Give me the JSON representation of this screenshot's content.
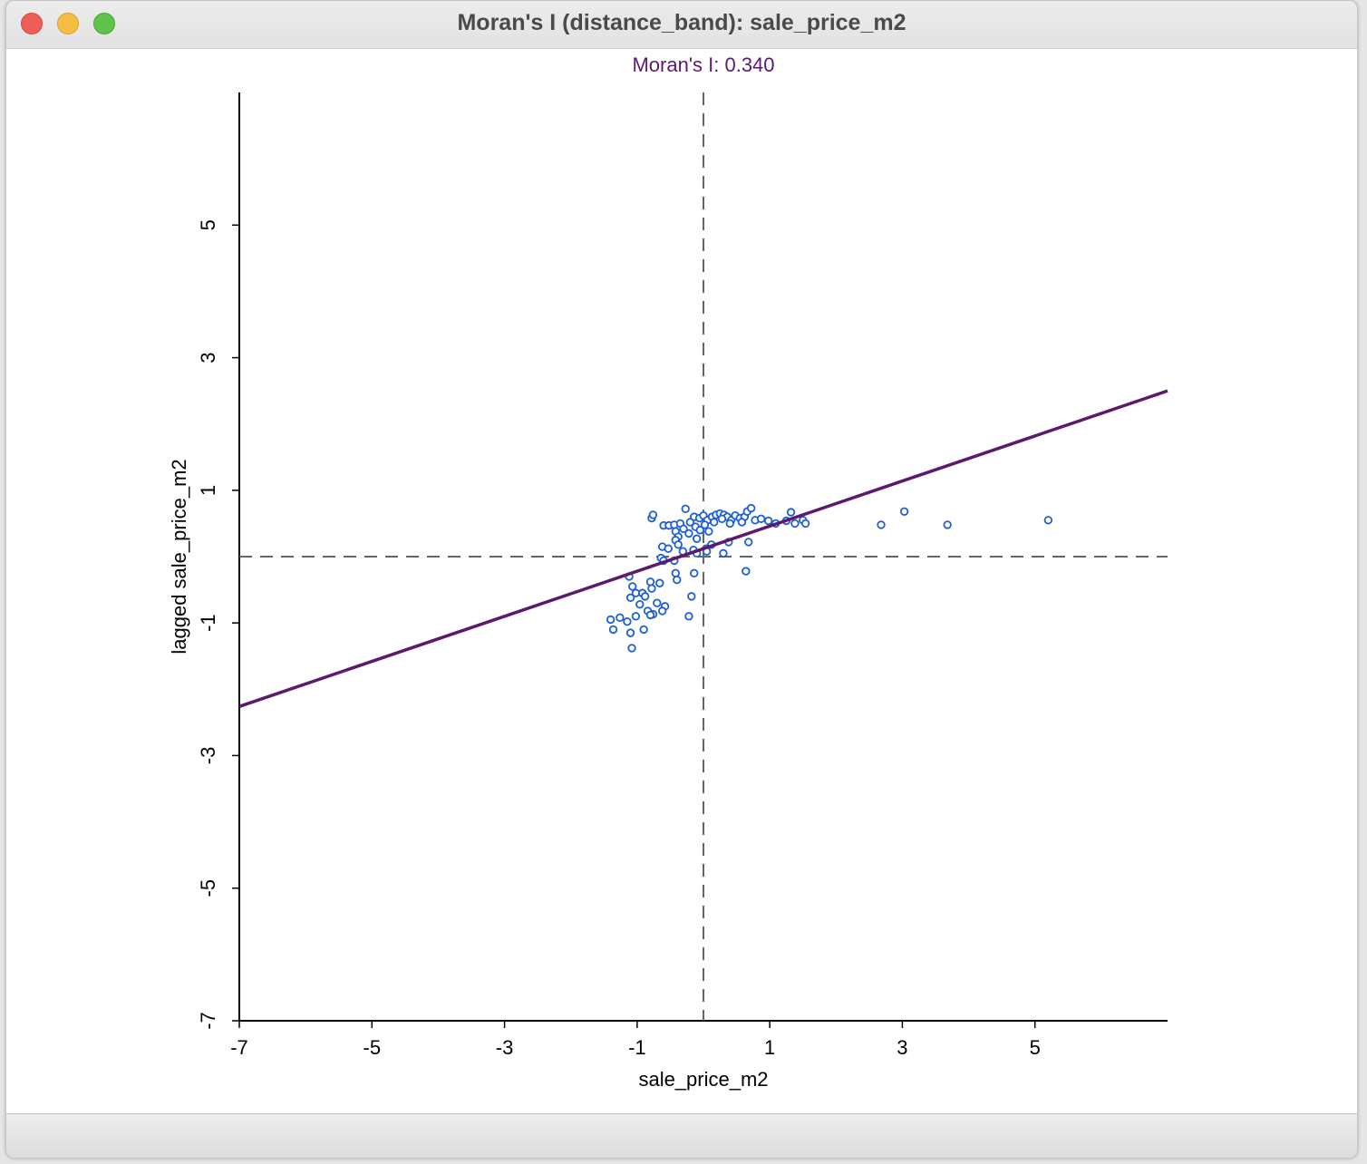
{
  "window": {
    "title": "Moran's I (distance_band): sale_price_m2"
  },
  "chart_data": {
    "type": "scatter",
    "title": "Moran's I: 0.340",
    "xlabel": "sale_price_m2",
    "ylabel": "lagged sale_price_m2",
    "xlim": [
      -7,
      7
    ],
    "ylim": [
      -7,
      7
    ],
    "xticks": [
      "-7",
      "-5",
      "-3",
      "-1",
      "1",
      "3",
      "5"
    ],
    "yticks": [
      "-7",
      "-5",
      "-3",
      "-1",
      "1",
      "3",
      "5"
    ],
    "grid": false,
    "reference_lines": {
      "x": 0,
      "y": 0,
      "style": "dashed"
    },
    "regression_line": {
      "slope": 0.34,
      "intercept": 0.12
    },
    "colors": {
      "points": "#1f5fd6",
      "regression": "#5b1a6e",
      "title": "#5b1a6e",
      "reference": "#666666"
    },
    "points": [
      [
        -0.78,
        0.58
      ],
      [
        -0.76,
        0.63
      ],
      [
        -0.6,
        0.47
      ],
      [
        -0.52,
        0.47
      ],
      [
        -0.44,
        0.48
      ],
      [
        -0.35,
        0.5
      ],
      [
        -0.27,
        0.72
      ],
      [
        -0.2,
        0.52
      ],
      [
        -0.14,
        0.6
      ],
      [
        -0.06,
        0.58
      ],
      [
        0.0,
        0.62
      ],
      [
        0.06,
        0.55
      ],
      [
        0.13,
        0.6
      ],
      [
        0.19,
        0.63
      ],
      [
        0.25,
        0.65
      ],
      [
        0.31,
        0.63
      ],
      [
        0.36,
        0.6
      ],
      [
        0.42,
        0.55
      ],
      [
        0.48,
        0.62
      ],
      [
        0.55,
        0.58
      ],
      [
        0.62,
        0.6
      ],
      [
        0.66,
        0.68
      ],
      [
        0.72,
        0.73
      ],
      [
        0.78,
        0.55
      ],
      [
        0.87,
        0.57
      ],
      [
        0.98,
        0.54
      ],
      [
        1.09,
        0.5
      ],
      [
        1.25,
        0.54
      ],
      [
        1.32,
        0.67
      ],
      [
        1.38,
        0.5
      ],
      [
        1.5,
        0.55
      ],
      [
        1.54,
        0.5
      ],
      [
        2.68,
        0.48
      ],
      [
        3.03,
        0.68
      ],
      [
        3.68,
        0.48
      ],
      [
        5.2,
        0.55
      ],
      [
        -0.42,
        0.38
      ],
      [
        -0.38,
        0.3
      ],
      [
        -0.3,
        0.42
      ],
      [
        -0.22,
        0.35
      ],
      [
        -0.12,
        0.45
      ],
      [
        -0.05,
        0.4
      ],
      [
        0.02,
        0.48
      ],
      [
        0.08,
        0.38
      ],
      [
        0.16,
        0.52
      ],
      [
        0.28,
        0.57
      ],
      [
        0.4,
        0.5
      ],
      [
        0.58,
        0.52
      ],
      [
        -0.62,
        0.15
      ],
      [
        -0.53,
        0.12
      ],
      [
        -0.42,
        0.25
      ],
      [
        -0.38,
        0.18
      ],
      [
        -0.31,
        0.08
      ],
      [
        -0.15,
        0.1
      ],
      [
        -0.1,
        0.05
      ],
      [
        0.04,
        0.12
      ],
      [
        0.12,
        0.18
      ],
      [
        0.3,
        0.05
      ],
      [
        0.38,
        0.22
      ],
      [
        0.68,
        0.22
      ],
      [
        -0.1,
        0.27
      ],
      [
        0.05,
        0.08
      ],
      [
        -0.64,
        -0.02
      ],
      [
        -0.6,
        -0.06
      ],
      [
        -0.44,
        -0.06
      ],
      [
        -0.42,
        -0.25
      ],
      [
        -0.4,
        -0.35
      ],
      [
        -0.14,
        -0.25
      ],
      [
        0.64,
        -0.22
      ],
      [
        -1.12,
        -0.3
      ],
      [
        -1.07,
        -0.45
      ],
      [
        -1.02,
        -0.55
      ],
      [
        -1.1,
        -0.62
      ],
      [
        -0.92,
        -0.55
      ],
      [
        -0.88,
        -0.6
      ],
      [
        -0.8,
        -0.38
      ],
      [
        -0.78,
        -0.48
      ],
      [
        -0.7,
        -0.7
      ],
      [
        -0.58,
        -0.75
      ],
      [
        -0.18,
        -0.6
      ],
      [
        -0.66,
        -0.4
      ],
      [
        -1.4,
        -0.95
      ],
      [
        -1.36,
        -1.1
      ],
      [
        -1.26,
        -0.92
      ],
      [
        -1.15,
        -0.98
      ],
      [
        -1.1,
        -1.15
      ],
      [
        -1.08,
        -1.38
      ],
      [
        -1.02,
        -0.9
      ],
      [
        -0.96,
        -0.72
      ],
      [
        -0.9,
        -1.1
      ],
      [
        -0.84,
        -0.82
      ],
      [
        -0.76,
        -0.87
      ],
      [
        -0.62,
        -0.82
      ],
      [
        -0.22,
        -0.9
      ],
      [
        -0.8,
        -0.88
      ]
    ]
  }
}
